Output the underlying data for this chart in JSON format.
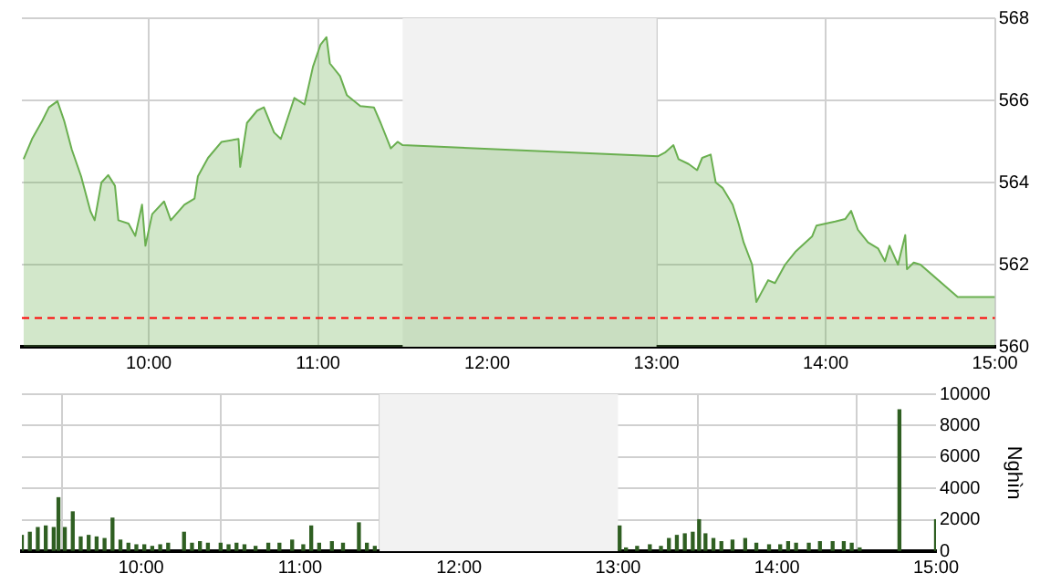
{
  "chart_data": [
    {
      "type": "area",
      "color": "#6aaf50",
      "x": [
        9.26,
        9.31,
        9.37,
        9.41,
        9.46,
        9.5,
        9.545,
        9.6,
        9.655,
        9.68,
        9.72,
        9.76,
        9.8,
        9.82,
        9.88,
        9.92,
        9.96,
        9.98,
        10.02,
        10.09,
        10.13,
        10.21,
        10.27,
        10.29,
        10.35,
        10.43,
        10.53,
        10.54,
        10.58,
        10.64,
        10.68,
        10.74,
        10.78,
        10.86,
        10.92,
        10.97,
        11.015,
        11.05,
        11.07,
        11.13,
        11.17,
        11.25,
        11.33,
        11.37,
        11.43,
        11.47,
        11.5,
        13.01,
        13.05,
        13.1,
        13.13,
        13.19,
        13.24,
        13.27,
        13.32,
        13.35,
        13.39,
        13.45,
        13.485,
        13.515,
        13.565,
        13.59,
        13.62,
        13.66,
        13.7,
        13.76,
        13.82,
        13.88,
        13.92,
        13.945,
        14.0,
        14.056,
        14.115,
        14.15,
        14.19,
        14.25,
        14.31,
        14.35,
        14.377,
        14.427,
        14.47,
        14.48,
        14.52,
        14.56,
        14.78,
        15.0
      ],
      "values": [
        564.57,
        565.06,
        565.5,
        565.83,
        565.98,
        565.5,
        564.8,
        564.15,
        563.3,
        563.08,
        564.0,
        564.18,
        563.92,
        563.08,
        563.0,
        562.7,
        563.46,
        562.46,
        563.23,
        563.54,
        563.08,
        563.46,
        563.61,
        564.15,
        564.6,
        564.99,
        565.06,
        564.38,
        565.45,
        565.75,
        565.83,
        565.22,
        565.06,
        566.06,
        565.9,
        566.82,
        567.36,
        567.54,
        566.9,
        566.59,
        566.13,
        565.86,
        565.83,
        565.45,
        564.83,
        564.99,
        564.91,
        564.64,
        564.73,
        564.91,
        564.57,
        564.45,
        564.3,
        564.6,
        564.68,
        564.0,
        563.87,
        563.46,
        563.0,
        562.54,
        562.0,
        561.09,
        561.32,
        561.62,
        561.55,
        562.0,
        562.31,
        562.54,
        562.69,
        562.95,
        563.0,
        563.05,
        563.11,
        563.31,
        562.85,
        562.54,
        562.39,
        562.08,
        562.46,
        562.0,
        562.72,
        561.89,
        562.05,
        562.0,
        561.21,
        561.21
      ],
      "xlim": [
        9.25,
        15
      ],
      "xticks": [
        {
          "value": 10,
          "label": "10:00"
        },
        {
          "value": 11,
          "label": "11:00"
        },
        {
          "value": 12,
          "label": "12:00"
        },
        {
          "value": 13,
          "label": "13:00"
        },
        {
          "value": 14,
          "label": "14:00"
        },
        {
          "value": 15,
          "label": "15:00"
        }
      ],
      "ylim": [
        560,
        568
      ],
      "yticks": [
        560,
        562,
        564,
        566,
        568
      ],
      "grid": true,
      "bands": [
        {
          "axis": "x",
          "from": 11.5,
          "to": 13,
          "color": "#f2f2f2"
        }
      ],
      "ref_lines": [
        {
          "axis": "y",
          "value": 560.7,
          "color": "#ff0000",
          "line_style": "dashed"
        }
      ]
    },
    {
      "type": "bar",
      "color": "#2f5f22",
      "ylabel": "Nghìn",
      "x": [
        9.25,
        9.3,
        9.35,
        9.4,
        9.45,
        9.48,
        9.52,
        9.57,
        9.62,
        9.67,
        9.72,
        9.77,
        9.82,
        9.87,
        9.92,
        9.97,
        10.02,
        10.07,
        10.12,
        10.17,
        10.27,
        10.32,
        10.37,
        10.42,
        10.5,
        10.55,
        10.6,
        10.65,
        10.72,
        10.8,
        10.87,
        10.95,
        11.02,
        11.07,
        11.12,
        11.2,
        11.27,
        11.37,
        11.42,
        11.47,
        13.01,
        13.05,
        13.12,
        13.2,
        13.27,
        13.32,
        13.37,
        13.42,
        13.47,
        13.51,
        13.55,
        13.6,
        13.65,
        13.72,
        13.8,
        13.87,
        13.95,
        14.02,
        14.07,
        14.12,
        14.2,
        14.27,
        14.35,
        14.42,
        14.47,
        14.52,
        14.77,
        15.0
      ],
      "values": [
        1000,
        1200,
        1500,
        1600,
        1500,
        3400,
        1500,
        2500,
        900,
        1000,
        900,
        800,
        2100,
        700,
        500,
        400,
        400,
        300,
        400,
        500,
        1200,
        500,
        600,
        500,
        500,
        400,
        500,
        400,
        300,
        500,
        500,
        700,
        400,
        1600,
        500,
        600,
        500,
        1800,
        500,
        300,
        1600,
        200,
        300,
        400,
        300,
        800,
        1000,
        1100,
        1200,
        2000,
        1100,
        800,
        600,
        700,
        800,
        500,
        400,
        400,
        600,
        500,
        500,
        600,
        600,
        600,
        500,
        200,
        9000,
        2000
      ],
      "xlim": [
        9.25,
        15
      ],
      "xticks": [
        {
          "value": 10,
          "label": "10:00"
        },
        {
          "value": 11,
          "label": "11:00"
        },
        {
          "value": 12,
          "label": "12:00"
        },
        {
          "value": 13,
          "label": "13:00"
        },
        {
          "value": 14,
          "label": "14:00"
        },
        {
          "value": 15,
          "label": "15:00"
        }
      ],
      "ylim": [
        0,
        10000
      ],
      "yticks": [
        0,
        2000,
        4000,
        6000,
        8000,
        10000
      ],
      "grid": true,
      "bands": [
        {
          "axis": "x",
          "from": 11.5,
          "to": 13,
          "color": "#f2f2f2"
        }
      ]
    }
  ]
}
